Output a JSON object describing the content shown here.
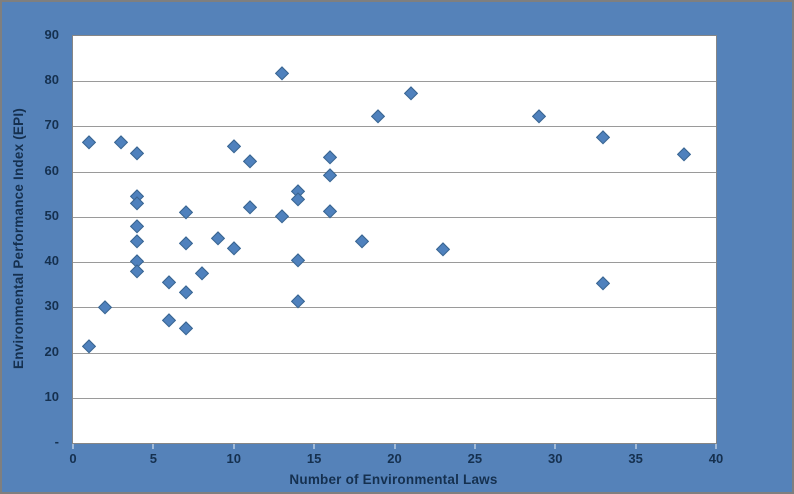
{
  "colors": {
    "frame_bg": "#5582B9",
    "outer_border": "#7F7F7F",
    "plot_bg": "#FFFFFF",
    "gridline": "#9A9A9A",
    "plot_border": "#868686",
    "marker_fill": "#4F81BD",
    "marker_stroke": "#3A6590",
    "label_text": "#15304F"
  },
  "chart_data": {
    "type": "scatter",
    "title": "",
    "xlabel": "Number of Environmental Laws",
    "ylabel": "Environmental Performance Index (EPI)",
    "xlim": [
      0,
      40
    ],
    "ylim": [
      0,
      90
    ],
    "grid": "horizontal-only",
    "legend": "none",
    "marker_shape": "diamond",
    "x_ticks": [
      {
        "value": 0,
        "label": "0"
      },
      {
        "value": 5,
        "label": "5"
      },
      {
        "value": 10,
        "label": "10"
      },
      {
        "value": 15,
        "label": "15"
      },
      {
        "value": 20,
        "label": "20"
      },
      {
        "value": 25,
        "label": "25"
      },
      {
        "value": 30,
        "label": "30"
      },
      {
        "value": 35,
        "label": "35"
      },
      {
        "value": 40,
        "label": "40"
      }
    ],
    "y_ticks": [
      {
        "value": 0,
        "label": "-"
      },
      {
        "value": 10,
        "label": "10"
      },
      {
        "value": 20,
        "label": "20"
      },
      {
        "value": 30,
        "label": "30"
      },
      {
        "value": 40,
        "label": "40"
      },
      {
        "value": 50,
        "label": "50"
      },
      {
        "value": 60,
        "label": "60"
      },
      {
        "value": 70,
        "label": "70"
      },
      {
        "value": 80,
        "label": "80"
      },
      {
        "value": 90,
        "label": "90"
      }
    ],
    "points": [
      {
        "x": 1,
        "y": 66.6
      },
      {
        "x": 1,
        "y": 21.4
      },
      {
        "x": 2,
        "y": 30.1
      },
      {
        "x": 3,
        "y": 66.6
      },
      {
        "x": 4,
        "y": 64.2
      },
      {
        "x": 4,
        "y": 54.7
      },
      {
        "x": 4,
        "y": 53.0
      },
      {
        "x": 4,
        "y": 48.0
      },
      {
        "x": 4,
        "y": 44.6
      },
      {
        "x": 4,
        "y": 40.2
      },
      {
        "x": 4,
        "y": 38.1
      },
      {
        "x": 6,
        "y": 35.5
      },
      {
        "x": 6,
        "y": 27.3
      },
      {
        "x": 7,
        "y": 51.1
      },
      {
        "x": 7,
        "y": 44.3
      },
      {
        "x": 7,
        "y": 33.4
      },
      {
        "x": 7,
        "y": 25.4
      },
      {
        "x": 8,
        "y": 37.6
      },
      {
        "x": 9,
        "y": 45.4
      },
      {
        "x": 10,
        "y": 65.7
      },
      {
        "x": 10,
        "y": 43.2
      },
      {
        "x": 11,
        "y": 62.4
      },
      {
        "x": 11,
        "y": 52.1
      },
      {
        "x": 13,
        "y": 81.8
      },
      {
        "x": 13,
        "y": 50.2
      },
      {
        "x": 14,
        "y": 55.8
      },
      {
        "x": 14,
        "y": 54.0
      },
      {
        "x": 14,
        "y": 40.5
      },
      {
        "x": 14,
        "y": 31.3
      },
      {
        "x": 16,
        "y": 63.2
      },
      {
        "x": 16,
        "y": 59.3
      },
      {
        "x": 16,
        "y": 51.2
      },
      {
        "x": 18,
        "y": 44.7
      },
      {
        "x": 19,
        "y": 72.3
      },
      {
        "x": 21,
        "y": 77.5
      },
      {
        "x": 23,
        "y": 43.0
      },
      {
        "x": 29,
        "y": 72.4
      },
      {
        "x": 33,
        "y": 67.6
      },
      {
        "x": 33,
        "y": 35.4
      },
      {
        "x": 38,
        "y": 63.9
      }
    ]
  }
}
